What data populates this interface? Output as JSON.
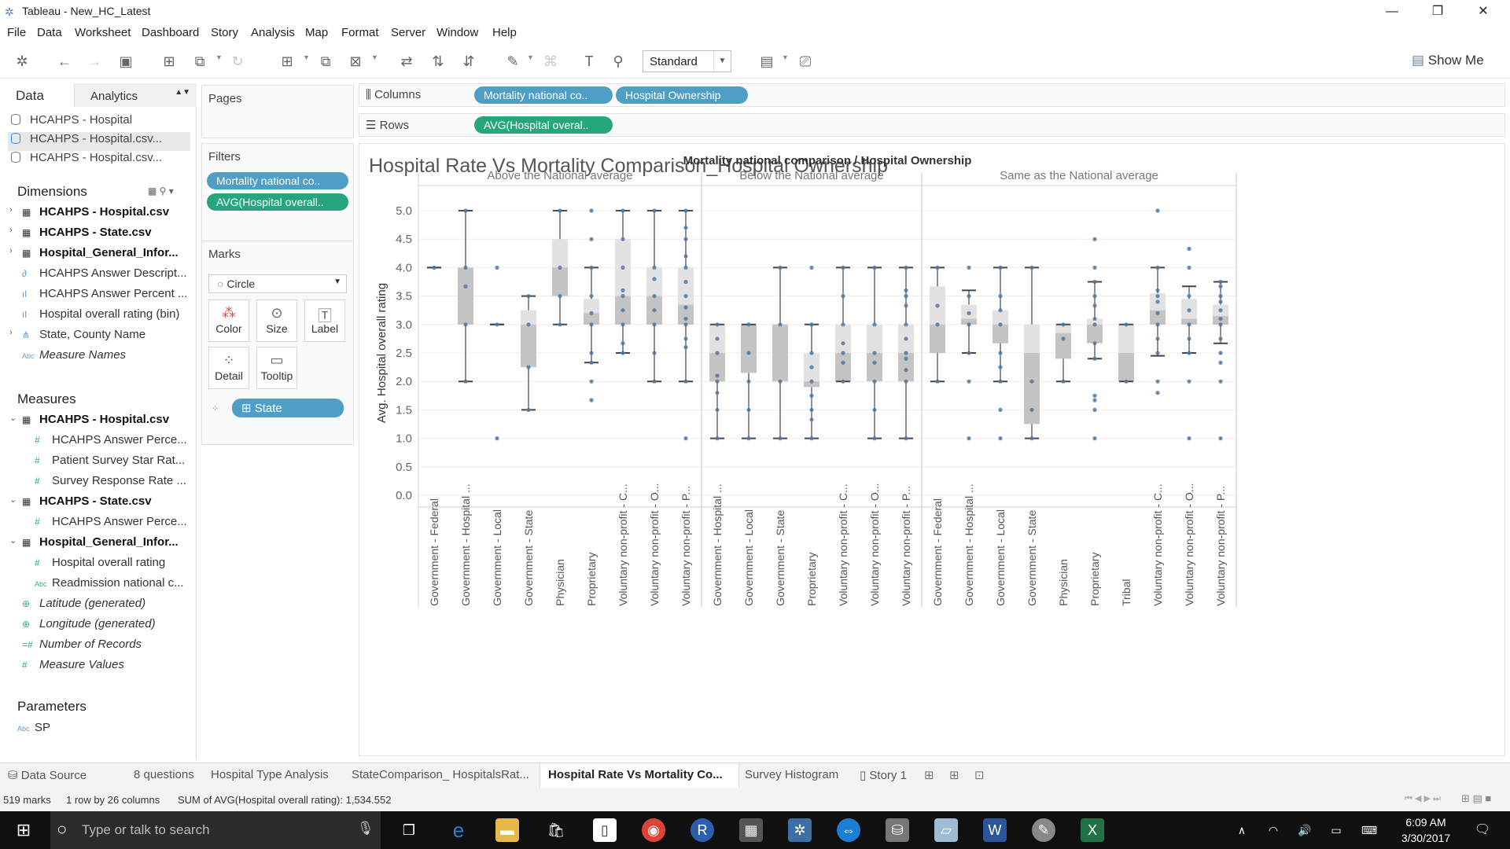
{
  "window": {
    "title": "Tableau - New_HC_Latest",
    "controls": [
      "—",
      "❐",
      "✕"
    ]
  },
  "menu": [
    "File",
    "Data",
    "Worksheet",
    "Dashboard",
    "Story",
    "Analysis",
    "Map",
    "Format",
    "Server",
    "Window",
    "Help"
  ],
  "toolbar": {
    "fit_value": "Standard",
    "show_me": "Show Me"
  },
  "left": {
    "tab_data": "Data",
    "tab_analytics": "Analytics",
    "datasources": [
      "HCAHPS - Hospital",
      "HCAHPS - Hospital.csv...",
      "HCAHPS - Hospital.csv..."
    ],
    "dimensions_label": "Dimensions",
    "dimensions": [
      "HCAHPS - Hospital.csv",
      "HCAHPS - State.csv",
      "Hospital_General_Infor...",
      "HCAHPS Answer Descript...",
      "HCAHPS Answer Percent ...",
      "Hospital overall rating (bin)",
      "State, County Name",
      "Measure Names"
    ],
    "measures_label": "Measures",
    "measures": [
      "HCAHPS - Hospital.csv",
      "HCAHPS Answer Perce...",
      "Patient Survey Star Rat...",
      "Survey Response Rate ...",
      "HCAHPS - State.csv",
      "HCAHPS Answer Perce...",
      "Hospital_General_Infor...",
      "Hospital overall rating",
      "Readmission national c...",
      "Latitude (generated)",
      "Longitude (generated)",
      "Number of Records",
      "Measure Values"
    ],
    "parameters_label": "Parameters",
    "parameters": [
      "SP"
    ]
  },
  "mid": {
    "pages_label": "Pages",
    "filters_label": "Filters",
    "filters": [
      "Mortality national co..",
      "AVG(Hospital overall.."
    ],
    "marks_label": "Marks",
    "mark_type": "Circle",
    "mark_buttons": [
      "Color",
      "Size",
      "Label",
      "Detail",
      "Tooltip"
    ],
    "detail_pill": "State"
  },
  "shelves": {
    "columns_label": "Columns",
    "columns": [
      "Mortality national co..",
      "Hospital Ownership"
    ],
    "rows_label": "Rows",
    "rows": [
      "AVG(Hospital overal.."
    ]
  },
  "sheet": {
    "title": "Hospital Rate Vs Mortality Comparison_Hospital Ownership"
  },
  "chart_data": {
    "type": "box",
    "header": "Mortality national comparison  /  Hospital Ownership",
    "ylabel": "Avg. Hospital overall rating",
    "ylim": [
      0,
      5
    ],
    "yticks": [
      "0.0",
      "0.5",
      "1.0",
      "1.5",
      "2.0",
      "2.5",
      "3.0",
      "3.5",
      "4.0",
      "4.5",
      "5.0"
    ],
    "panes": [
      {
        "name": "Above the National average",
        "boxes": [
          {
            "cat": "Government - Federal",
            "min": 4.0,
            "q1": 4.0,
            "median": 4.0,
            "q3": 4.0,
            "max": 4.0,
            "points": [
              4.0
            ]
          },
          {
            "cat": "Government - Hospital ...",
            "min": 2.0,
            "q1": 3.0,
            "median": 4.0,
            "q3": 4.0,
            "max": 5.0,
            "points": [
              2.0,
              3.0,
              3.67,
              4.0,
              5.0
            ]
          },
          {
            "cat": "Government - Local",
            "min": 3.0,
            "q1": 3.0,
            "median": 3.0,
            "q3": 3.0,
            "max": 3.0,
            "points": [
              1.0,
              3.0,
              4.0
            ]
          },
          {
            "cat": "Government - State",
            "min": 1.5,
            "q1": 2.25,
            "median": 3.0,
            "q3": 3.25,
            "max": 3.5,
            "points": [
              1.5,
              2.25,
              3.0,
              3.5
            ]
          },
          {
            "cat": "Physician",
            "min": 3.0,
            "q1": 3.5,
            "median": 4.0,
            "q3": 4.5,
            "max": 5.0,
            "points": [
              3.0,
              3.5,
              4.0,
              5.0
            ]
          },
          {
            "cat": "Proprietary",
            "min": 2.33,
            "q1": 3.0,
            "median": 3.2,
            "q3": 3.45,
            "max": 4.0,
            "points": [
              1.67,
              2.0,
              2.33,
              2.5,
              3.0,
              3.2,
              3.5,
              4.0,
              4.5,
              5.0
            ]
          },
          {
            "cat": "Voluntary non-profit - C...",
            "min": 2.5,
            "q1": 3.0,
            "median": 3.5,
            "q3": 4.5,
            "max": 5.0,
            "points": [
              2.5,
              2.67,
              3.0,
              3.25,
              3.5,
              3.6,
              4.0,
              4.5,
              5.0
            ]
          },
          {
            "cat": "Voluntary non-profit - O...",
            "min": 2.0,
            "q1": 3.0,
            "median": 3.5,
            "q3": 4.0,
            "max": 5.0,
            "points": [
              2.0,
              2.5,
              3.0,
              3.25,
              3.5,
              3.8,
              4.0,
              5.0
            ]
          },
          {
            "cat": "Voluntary non-profit - P...",
            "min": 2.0,
            "q1": 3.0,
            "median": 3.35,
            "q3": 4.0,
            "max": 5.0,
            "points": [
              1.0,
              2.0,
              2.6,
              2.75,
              3.0,
              3.1,
              3.3,
              3.5,
              3.75,
              4.0,
              4.2,
              4.5,
              4.7,
              5.0
            ]
          }
        ]
      },
      {
        "name": "Below the National average",
        "boxes": [
          {
            "cat": "Government - Hospital ...",
            "min": 1.0,
            "q1": 2.0,
            "median": 2.5,
            "q3": 3.0,
            "max": 3.0,
            "points": [
              1.0,
              1.5,
              1.8,
              2.0,
              2.1,
              2.5,
              2.75,
              3.0
            ]
          },
          {
            "cat": "Government - Local",
            "min": 1.0,
            "q1": 2.15,
            "median": 3.0,
            "q3": 3.0,
            "max": 3.0,
            "points": [
              1.0,
              1.5,
              2.0,
              2.5,
              3.0
            ]
          },
          {
            "cat": "Government - State",
            "min": 1.0,
            "q1": 2.0,
            "median": 3.0,
            "q3": 3.0,
            "max": 4.0,
            "points": [
              1.0,
              2.0,
              3.0,
              4.0
            ]
          },
          {
            "cat": "Proprietary",
            "min": 1.0,
            "q1": 1.9,
            "median": 2.0,
            "q3": 2.5,
            "max": 3.0,
            "points": [
              1.0,
              1.33,
              1.5,
              1.75,
              2.0,
              2.25,
              2.5,
              3.0,
              4.0
            ]
          },
          {
            "cat": "Voluntary non-profit - C...",
            "min": 2.0,
            "q1": 2.0,
            "median": 2.5,
            "q3": 3.0,
            "max": 4.0,
            "points": [
              2.0,
              2.33,
              2.5,
              2.67,
              3.0,
              3.5,
              4.0
            ]
          },
          {
            "cat": "Voluntary non-profit - O...",
            "min": 1.0,
            "q1": 2.0,
            "median": 2.5,
            "q3": 3.0,
            "max": 4.0,
            "points": [
              1.0,
              1.5,
              2.0,
              2.33,
              2.5,
              3.0,
              4.0
            ]
          },
          {
            "cat": "Voluntary non-profit - P...",
            "min": 1.0,
            "q1": 2.0,
            "median": 2.5,
            "q3": 3.0,
            "max": 4.0,
            "points": [
              1.0,
              2.0,
              2.2,
              2.4,
              2.5,
              2.75,
              3.0,
              3.33,
              3.5,
              3.6,
              4.0
            ]
          }
        ]
      },
      {
        "name": "Same as the National average",
        "boxes": [
          {
            "cat": "Government - Federal",
            "min": 2.0,
            "q1": 2.5,
            "median": 3.0,
            "q3": 3.67,
            "max": 4.0,
            "points": [
              2.0,
              3.0,
              3.33,
              4.0
            ]
          },
          {
            "cat": "Government - Hospital ...",
            "min": 2.5,
            "q1": 3.0,
            "median": 3.1,
            "q3": 3.35,
            "max": 3.6,
            "points": [
              1.0,
              2.0,
              2.5,
              3.0,
              3.2,
              3.5,
              4.0
            ]
          },
          {
            "cat": "Government - Local",
            "min": 2.0,
            "q1": 2.67,
            "median": 3.0,
            "q3": 3.25,
            "max": 4.0,
            "points": [
              1.0,
              1.5,
              2.0,
              2.25,
              2.5,
              3.0,
              3.25,
              3.5,
              4.0
            ]
          },
          {
            "cat": "Government - State",
            "min": 1.0,
            "q1": 1.25,
            "median": 2.5,
            "q3": 3.0,
            "max": 4.0,
            "points": [
              1.0,
              1.5,
              2.0,
              4.0
            ]
          },
          {
            "cat": "Physician",
            "min": 2.0,
            "q1": 2.4,
            "median": 2.85,
            "q3": 3.0,
            "max": 3.0,
            "points": [
              2.0,
              2.75,
              3.0
            ]
          },
          {
            "cat": "Proprietary",
            "min": 2.4,
            "q1": 2.67,
            "median": 3.0,
            "q3": 3.1,
            "max": 3.75,
            "points": [
              1.0,
              1.5,
              1.67,
              1.75,
              2.4,
              2.67,
              3.0,
              3.1,
              3.33,
              3.5,
              3.75,
              4.0,
              4.5
            ]
          },
          {
            "cat": "Tribal",
            "min": 2.0,
            "q1": 2.0,
            "median": 2.5,
            "q3": 3.0,
            "max": 3.0,
            "points": [
              2.0,
              3.0
            ]
          },
          {
            "cat": "Voluntary non-profit - C...",
            "min": 2.45,
            "q1": 3.0,
            "median": 3.25,
            "q3": 3.55,
            "max": 4.0,
            "points": [
              1.8,
              2.0,
              2.5,
              2.75,
              3.0,
              3.2,
              3.4,
              3.5,
              3.6,
              4.0,
              5.0
            ]
          },
          {
            "cat": "Voluntary non-profit - O...",
            "min": 2.5,
            "q1": 3.0,
            "median": 3.1,
            "q3": 3.45,
            "max": 3.67,
            "points": [
              1.0,
              2.0,
              2.5,
              2.75,
              3.0,
              3.25,
              3.5,
              4.0,
              4.33
            ]
          },
          {
            "cat": "Voluntary non-profit - P...",
            "min": 2.67,
            "q1": 3.0,
            "median": 3.15,
            "q3": 3.35,
            "max": 3.75,
            "points": [
              1.0,
              2.0,
              2.33,
              2.5,
              2.75,
              3.0,
              3.1,
              3.25,
              3.4,
              3.5,
              3.67,
              3.75
            ]
          }
        ]
      }
    ]
  },
  "tabs": {
    "data_source": "Data Source",
    "sheets": [
      "8 questions",
      "Hospital Type Analysis",
      "StateComparison_ HospitalsRat...",
      "Hospital Rate Vs Mortality Co...",
      "Survey Histogram",
      "Story 1"
    ],
    "active": "Hospital Rate Vs Mortality Co..."
  },
  "status": {
    "marks": "519 marks",
    "dims": "1 row by 26 columns",
    "sum": "SUM of AVG(Hospital overall rating): 1,534.552"
  },
  "taskbar": {
    "search_placeholder": "Type or talk to search",
    "time": "6:09 AM",
    "date": "3/30/2017"
  }
}
